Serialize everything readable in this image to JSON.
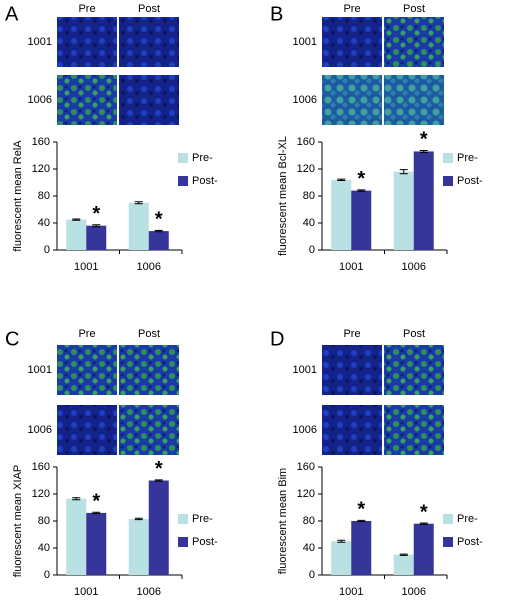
{
  "chart_data": [
    {
      "type": "bar",
      "label": "A",
      "images": {
        "columns": [
          "Pre",
          "Post"
        ],
        "rows": [
          "1001",
          "1006"
        ]
      },
      "ylabel": "fluorescent mean RelA",
      "categories": [
        "1001",
        "1006"
      ],
      "series": [
        {
          "name": "Pre-",
          "color": "#b9e1e3",
          "values": [
            45,
            70
          ],
          "errors": [
            1,
            1.5
          ]
        },
        {
          "name": "Post-",
          "color": "#35359a",
          "values": [
            36,
            28
          ],
          "errors": [
            1.5,
            1
          ]
        }
      ],
      "annotations": [
        "*",
        "*"
      ],
      "ylim": [
        0,
        160
      ],
      "yticks": [
        0,
        40,
        80,
        120,
        160
      ]
    },
    {
      "type": "bar",
      "label": "B",
      "images": {
        "columns": [
          "Pre",
          "Post"
        ],
        "rows": [
          "1001",
          "1006"
        ]
      },
      "ylabel": "fluorescent mean Bcl-XL",
      "categories": [
        "1001",
        "1006"
      ],
      "series": [
        {
          "name": "Pre-",
          "color": "#b9e1e3",
          "values": [
            104,
            116
          ],
          "errors": [
            1,
            3
          ]
        },
        {
          "name": "Post-",
          "color": "#35359a",
          "values": [
            88,
            146
          ],
          "errors": [
            1,
            1.5
          ]
        }
      ],
      "annotations": [
        "*",
        "*"
      ],
      "ylim": [
        0,
        160
      ],
      "yticks": [
        0,
        40,
        80,
        120,
        160
      ]
    },
    {
      "type": "bar",
      "label": "C",
      "images": {
        "columns": [
          "Pre",
          "Post"
        ],
        "rows": [
          "1001",
          "1006"
        ]
      },
      "ylabel": "fluorescent mean XIAP",
      "categories": [
        "1001",
        "1006"
      ],
      "series": [
        {
          "name": "Pre-",
          "color": "#b9e1e3",
          "values": [
            113,
            83
          ],
          "errors": [
            1.5,
            1
          ]
        },
        {
          "name": "Post-",
          "color": "#35359a",
          "values": [
            92,
            140
          ],
          "errors": [
            1,
            1
          ]
        }
      ],
      "annotations": [
        "*",
        "*"
      ],
      "ylim": [
        0,
        160
      ],
      "yticks": [
        0,
        40,
        80,
        120,
        160
      ]
    },
    {
      "type": "bar",
      "label": "D",
      "images": {
        "columns": [
          "Pre",
          "Post"
        ],
        "rows": [
          "1001",
          "1006"
        ]
      },
      "ylabel": "fluorescent mean Bim",
      "categories": [
        "1001",
        "1006"
      ],
      "series": [
        {
          "name": "Pre-",
          "color": "#b9e1e3",
          "values": [
            50,
            30
          ],
          "errors": [
            1.5,
            1
          ]
        },
        {
          "name": "Post-",
          "color": "#35359a",
          "values": [
            80,
            76
          ],
          "errors": [
            1,
            1
          ]
        }
      ],
      "annotations": [
        "*",
        "*"
      ],
      "ylim": [
        0,
        160
      ],
      "yticks": [
        0,
        40,
        80,
        120,
        160
      ]
    }
  ]
}
